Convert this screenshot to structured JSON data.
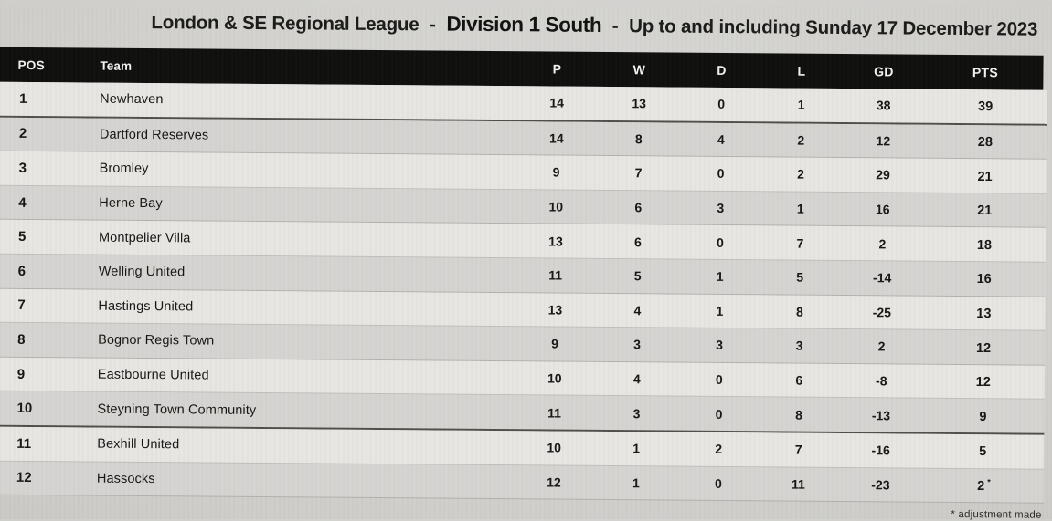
{
  "title": {
    "league": "London & SE Regional League",
    "separator": "-",
    "division": "Division 1 South",
    "suffix": "Up to and including Sunday 17 December 2023"
  },
  "table": {
    "columns": {
      "pos": "POS",
      "team": "Team",
      "p": "P",
      "w": "W",
      "d": "D",
      "l": "L",
      "gd": "GD",
      "pts": "PTS"
    },
    "rows": [
      {
        "pos": "1",
        "team": "Newhaven",
        "p": "14",
        "w": "13",
        "d": "0",
        "l": "1",
        "gd": "38",
        "pts": "39",
        "pts_note": ""
      },
      {
        "pos": "2",
        "team": "Dartford Reserves",
        "p": "14",
        "w": "8",
        "d": "4",
        "l": "2",
        "gd": "12",
        "pts": "28",
        "pts_note": ""
      },
      {
        "pos": "3",
        "team": "Bromley",
        "p": "9",
        "w": "7",
        "d": "0",
        "l": "2",
        "gd": "29",
        "pts": "21",
        "pts_note": ""
      },
      {
        "pos": "4",
        "team": "Herne Bay",
        "p": "10",
        "w": "6",
        "d": "3",
        "l": "1",
        "gd": "16",
        "pts": "21",
        "pts_note": ""
      },
      {
        "pos": "5",
        "team": "Montpelier Villa",
        "p": "13",
        "w": "6",
        "d": "0",
        "l": "7",
        "gd": "2",
        "pts": "18",
        "pts_note": ""
      },
      {
        "pos": "6",
        "team": "Welling United",
        "p": "11",
        "w": "5",
        "d": "1",
        "l": "5",
        "gd": "-14",
        "pts": "16",
        "pts_note": ""
      },
      {
        "pos": "7",
        "team": "Hastings United",
        "p": "13",
        "w": "4",
        "d": "1",
        "l": "8",
        "gd": "-25",
        "pts": "13",
        "pts_note": ""
      },
      {
        "pos": "8",
        "team": "Bognor Regis Town",
        "p": "9",
        "w": "3",
        "d": "3",
        "l": "3",
        "gd": "2",
        "pts": "12",
        "pts_note": ""
      },
      {
        "pos": "9",
        "team": "Eastbourne United",
        "p": "10",
        "w": "4",
        "d": "0",
        "l": "6",
        "gd": "-8",
        "pts": "12",
        "pts_note": ""
      },
      {
        "pos": "10",
        "team": "Steyning Town Community",
        "p": "11",
        "w": "3",
        "d": "0",
        "l": "8",
        "gd": "-13",
        "pts": "9",
        "pts_note": ""
      },
      {
        "pos": "11",
        "team": "Bexhill United",
        "p": "10",
        "w": "1",
        "d": "2",
        "l": "7",
        "gd": "-16",
        "pts": "5",
        "pts_note": ""
      },
      {
        "pos": "12",
        "team": "Hassocks",
        "p": "12",
        "w": "1",
        "d": "0",
        "l": "11",
        "gd": "-23",
        "pts": "2",
        "pts_note": "*"
      }
    ],
    "divider_after_positions": [
      "1",
      "10"
    ]
  },
  "footer": {
    "note": "* adjustment made"
  },
  "colors": {
    "page_bg": "#cdccc9",
    "header_bg": "#0f0f0e",
    "header_text": "#f3f3f1",
    "row_light": "#e7e6e3",
    "row_dark": "#d5d4d1",
    "divider_line": "#4e4e4b",
    "text": "#161614"
  },
  "chart_data": {
    "type": "table",
    "title": "London & SE Regional League - Division 1 South - Up to and including Sunday 17 December 2023",
    "columns": [
      "POS",
      "Team",
      "P",
      "W",
      "D",
      "L",
      "GD",
      "PTS"
    ],
    "rows": [
      [
        1,
        "Newhaven",
        14,
        13,
        0,
        1,
        38,
        39
      ],
      [
        2,
        "Dartford Reserves",
        14,
        8,
        4,
        2,
        12,
        28
      ],
      [
        3,
        "Bromley",
        9,
        7,
        0,
        2,
        29,
        21
      ],
      [
        4,
        "Herne Bay",
        10,
        6,
        3,
        1,
        16,
        21
      ],
      [
        5,
        "Montpelier Villa",
        13,
        6,
        0,
        7,
        2,
        18
      ],
      [
        6,
        "Welling United",
        11,
        5,
        1,
        5,
        -14,
        16
      ],
      [
        7,
        "Hastings United",
        13,
        4,
        1,
        8,
        -25,
        13
      ],
      [
        8,
        "Bognor Regis Town",
        9,
        3,
        3,
        3,
        2,
        12
      ],
      [
        9,
        "Eastbourne United",
        10,
        4,
        0,
        6,
        -8,
        12
      ],
      [
        10,
        "Steyning Town Community",
        11,
        3,
        0,
        8,
        -13,
        9
      ],
      [
        11,
        "Bexhill United",
        10,
        1,
        2,
        7,
        -16,
        5
      ],
      [
        12,
        "Hassocks",
        12,
        1,
        0,
        11,
        -23,
        2
      ]
    ],
    "footnote": "* adjustment made (asterisk shown on Hassocks PTS value)",
    "layout_notes": "black header bar; alternating light/dark grey row stripes; darker divider lines after positions 1 and 10"
  }
}
